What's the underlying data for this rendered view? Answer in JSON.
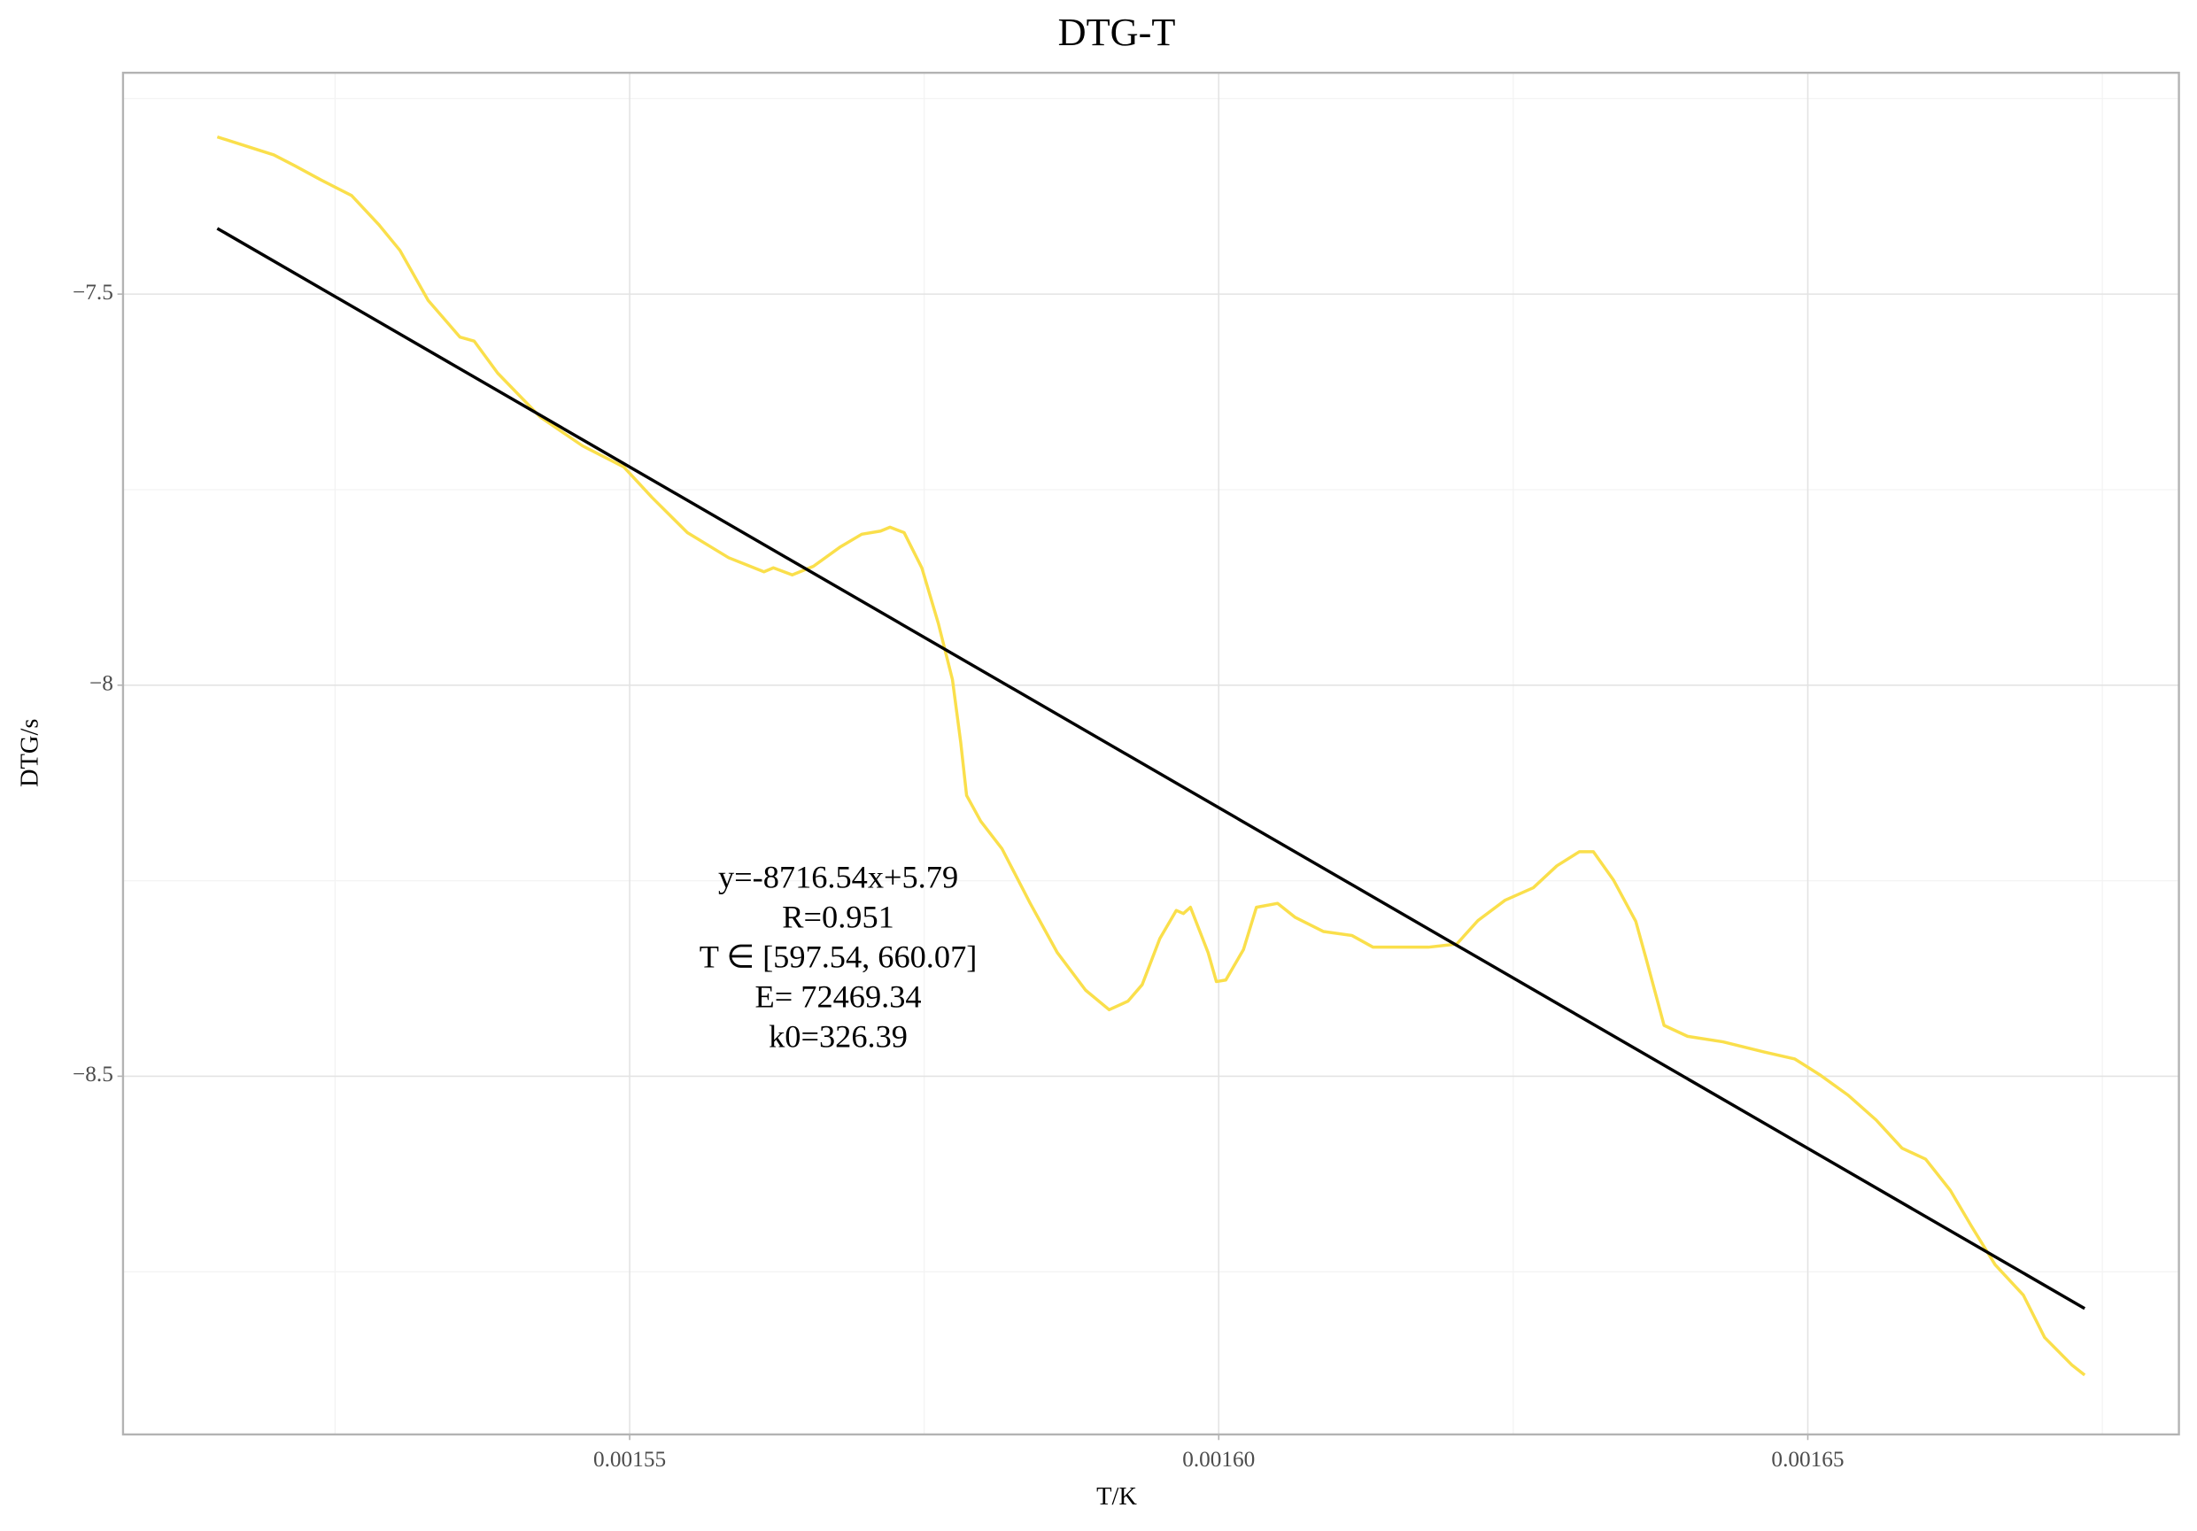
{
  "chart_data": {
    "type": "line",
    "title": "DTG-T",
    "x_label": "T/K",
    "y_label": "DTG/s",
    "xlim": [
      0.001507,
      0.0016815
    ],
    "ylim": [
      -8.958,
      -7.217
    ],
    "xticks": [
      0.00155,
      {
        "value": 0.0016,
        "label": "0.00160"
      },
      0.00165
    ],
    "yticks": [
      {
        "value": -7.5,
        "label": "−7.5"
      },
      {
        "value": -8,
        "label": "−8"
      },
      {
        "value": -8.5,
        "label": "−8.5"
      }
    ],
    "x_minor_ticks": [
      0.001525,
      0.001575,
      0.001625,
      0.001675
    ],
    "y_minor_ticks": [
      -7.25,
      -7.75,
      -8.25,
      -8.75
    ],
    "grid": true,
    "annotations": [
      "y=-8716.54x+5.79",
      "R=0.951",
      "T ∈ [597.54, 660.07]",
      "E= 72469.34",
      "k0=326.39"
    ],
    "series": [
      {
        "color": "#fadf4b",
        "x": [
          0.001515,
          0.0015175,
          0.0015198,
          0.0015216,
          0.0015238,
          0.0015264,
          0.0015287,
          0.0015305,
          0.0015329,
          0.0015356,
          0.0015368,
          0.0015388,
          0.0015424,
          0.001546,
          0.0015495,
          0.0015519,
          0.0015549,
          0.0015584,
          0.0015614,
          0.0015622,
          0.0015638,
          0.0015656,
          0.0015679,
          0.0015697,
          0.0015713,
          0.0015721,
          0.0015733,
          0.0015748,
          0.0015762,
          0.0015774,
          0.0015781,
          0.0015786,
          0.0015798,
          0.0015816,
          0.001584,
          0.0015863,
          0.0015887,
          0.0015907,
          0.0015923,
          0.0015935,
          0.001595,
          0.0015964,
          0.001597,
          0.0015976,
          0.0015991,
          0.0015998,
          0.0016006,
          0.0016021,
          0.0016032,
          0.001605,
          0.0016065,
          0.0016089,
          0.0016113,
          0.0016131,
          0.0016146,
          0.0016178,
          0.0016202,
          0.001622,
          0.0016243,
          0.0016267,
          0.0016287,
          0.0016306,
          0.0016318,
          0.0016335,
          0.0016354,
          0.0016363,
          0.0016378,
          0.0016398,
          0.0016428,
          0.0016463,
          0.0016489,
          0.0016511,
          0.0016534,
          0.0016558,
          0.001658,
          0.00166,
          0.0016621,
          0.0016639,
          0.0016659,
          0.0016683,
          0.0016701,
          0.0016724,
          0.0016735
        ],
        "values": [
          -7.299,
          -7.311,
          -7.322,
          -7.336,
          -7.354,
          -7.374,
          -7.411,
          -7.444,
          -7.508,
          -7.555,
          -7.56,
          -7.601,
          -7.657,
          -7.694,
          -7.721,
          -7.76,
          -7.805,
          -7.837,
          -7.855,
          -7.85,
          -7.859,
          -7.848,
          -7.823,
          -7.807,
          -7.803,
          -7.798,
          -7.805,
          -7.85,
          -7.921,
          -7.993,
          -8.073,
          -8.141,
          -8.174,
          -8.209,
          -8.279,
          -8.342,
          -8.39,
          -8.415,
          -8.404,
          -8.383,
          -8.324,
          -8.288,
          -8.292,
          -8.284,
          -8.342,
          -8.379,
          -8.377,
          -8.338,
          -8.284,
          -8.279,
          -8.297,
          -8.315,
          -8.32,
          -8.335,
          -8.335,
          -8.335,
          -8.331,
          -8.301,
          -8.275,
          -8.259,
          -8.231,
          -8.213,
          -8.213,
          -8.249,
          -8.302,
          -8.351,
          -8.435,
          -8.449,
          -8.456,
          -8.469,
          -8.478,
          -8.499,
          -8.524,
          -8.556,
          -8.592,
          -8.606,
          -8.646,
          -8.692,
          -8.741,
          -8.78,
          -8.834,
          -8.869,
          -8.882
        ]
      },
      {
        "color": "#000000",
        "x": [
          0.001515,
          0.0016735
        ],
        "values": [
          -7.416,
          -8.797
        ]
      }
    ]
  }
}
